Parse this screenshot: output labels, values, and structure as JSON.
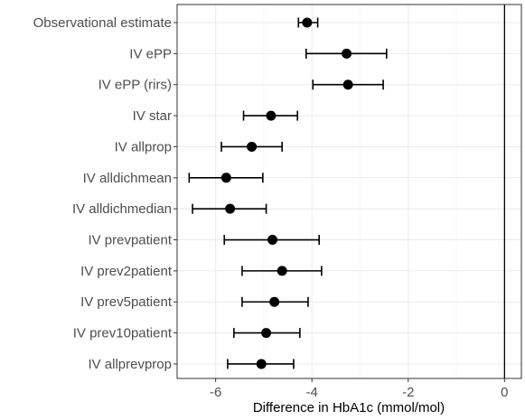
{
  "chart_data": {
    "type": "forest",
    "title": "",
    "xlabel": "Difference in HbA1c (mmol/mol)",
    "ylabel": "",
    "xlim": [
      -6.8,
      0.35
    ],
    "x_ticks": [
      -6,
      -4,
      -2,
      0
    ],
    "x_tick_labels": [
      "-6",
      "-4",
      "-2",
      "0"
    ],
    "reference_line": 0,
    "grid": true,
    "legend": "none",
    "rows": [
      {
        "label": "Observational estimate",
        "estimate": -4.1,
        "lower": -4.28,
        "upper": -3.88
      },
      {
        "label": "IV ePP",
        "estimate": -3.28,
        "lower": -4.12,
        "upper": -2.45
      },
      {
        "label": "IV ePP (rirs)",
        "estimate": -3.25,
        "lower": -3.98,
        "upper": -2.52
      },
      {
        "label": "IV star",
        "estimate": -4.85,
        "lower": -5.42,
        "upper": -4.3
      },
      {
        "label": "IV allprop",
        "estimate": -5.25,
        "lower": -5.88,
        "upper": -4.62
      },
      {
        "label": "IV alldichmean",
        "estimate": -5.78,
        "lower": -6.55,
        "upper": -5.02
      },
      {
        "label": "IV alldichmedian",
        "estimate": -5.7,
        "lower": -6.48,
        "upper": -4.95
      },
      {
        "label": "IV prevpatient",
        "estimate": -4.82,
        "lower": -5.82,
        "upper": -3.85
      },
      {
        "label": "IV prev2patient",
        "estimate": -4.62,
        "lower": -5.45,
        "upper": -3.8
      },
      {
        "label": "IV prev5patient",
        "estimate": -4.78,
        "lower": -5.45,
        "upper": -4.08
      },
      {
        "label": "IV prev10patient",
        "estimate": -4.95,
        "lower": -5.62,
        "upper": -4.25
      },
      {
        "label": "IV allprevprop",
        "estimate": -5.05,
        "lower": -5.75,
        "upper": -4.38
      }
    ]
  }
}
